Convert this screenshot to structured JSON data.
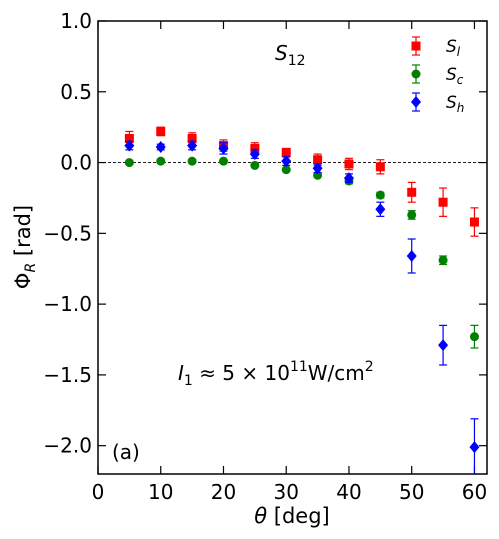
{
  "chart_data": {
    "type": "scatter",
    "title": "",
    "xlabel_symbol": "θ",
    "xlabel_unit": "[deg]",
    "ylabel_symbol": "Φ",
    "ylabel_sub": "R",
    "ylabel_unit": "[rad]",
    "xlim": [
      0,
      62
    ],
    "ylim": [
      -2.2,
      1.0
    ],
    "xticks": [
      0,
      10,
      20,
      30,
      40,
      50,
      60
    ],
    "yticks": [
      1.0,
      0.5,
      0.0,
      -0.5,
      -1.0,
      -1.5,
      -2.0
    ],
    "ytick_labels": [
      "1.0",
      "0.5",
      "0.0",
      "−0.5",
      "−1.0",
      "−1.5",
      "−2.0"
    ],
    "grid": false,
    "reference_line_y": 0.0,
    "legend_position": "top-right",
    "annotations": {
      "panel_title_main": "S",
      "panel_title_sub": "12",
      "intensity_lhs": "I",
      "intensity_lhs_sub": "1",
      "intensity_rhs": " ≈ 5 × 10",
      "intensity_exp": "11",
      "intensity_unit": "W/cm",
      "intensity_unit_exp": "2",
      "panel_label": "(a)"
    },
    "series": [
      {
        "name": "S_l",
        "legend_main": "S",
        "legend_sub": "l",
        "color": "#ff0000",
        "marker": "square",
        "x": [
          5,
          10,
          15,
          20,
          25,
          30,
          35,
          40,
          45,
          50,
          55,
          60
        ],
        "y": [
          0.17,
          0.22,
          0.17,
          0.12,
          0.1,
          0.07,
          0.02,
          -0.01,
          -0.03,
          -0.21,
          -0.28,
          -0.42
        ],
        "err": [
          0.05,
          0.03,
          0.04,
          0.04,
          0.04,
          0.03,
          0.04,
          0.04,
          0.05,
          0.07,
          0.1,
          0.1
        ]
      },
      {
        "name": "S_c",
        "legend_main": "S",
        "legend_sub": "c",
        "color": "#008000",
        "marker": "circle",
        "x": [
          5,
          10,
          15,
          20,
          25,
          30,
          35,
          40,
          45,
          50,
          55,
          60
        ],
        "y": [
          0.0,
          0.01,
          0.01,
          0.01,
          -0.02,
          -0.05,
          -0.09,
          -0.13,
          -0.23,
          -0.37,
          -0.69,
          -1.23
        ],
        "err": [
          0.01,
          0.01,
          0.01,
          0.01,
          0.01,
          0.01,
          0.01,
          0.02,
          0.02,
          0.03,
          0.03,
          0.08
        ]
      },
      {
        "name": "S_h",
        "legend_main": "S",
        "legend_sub": "h",
        "color": "#0000ff",
        "marker": "diamond",
        "x": [
          5,
          10,
          15,
          20,
          25,
          30,
          35,
          40,
          45,
          50,
          55,
          60
        ],
        "y": [
          0.12,
          0.11,
          0.12,
          0.1,
          0.06,
          0.01,
          -0.04,
          -0.11,
          -0.33,
          -0.66,
          -1.29,
          -2.01
        ],
        "err": [
          0.03,
          0.02,
          0.03,
          0.04,
          0.03,
          0.03,
          0.03,
          0.03,
          0.05,
          0.12,
          0.14,
          0.2
        ]
      }
    ]
  }
}
